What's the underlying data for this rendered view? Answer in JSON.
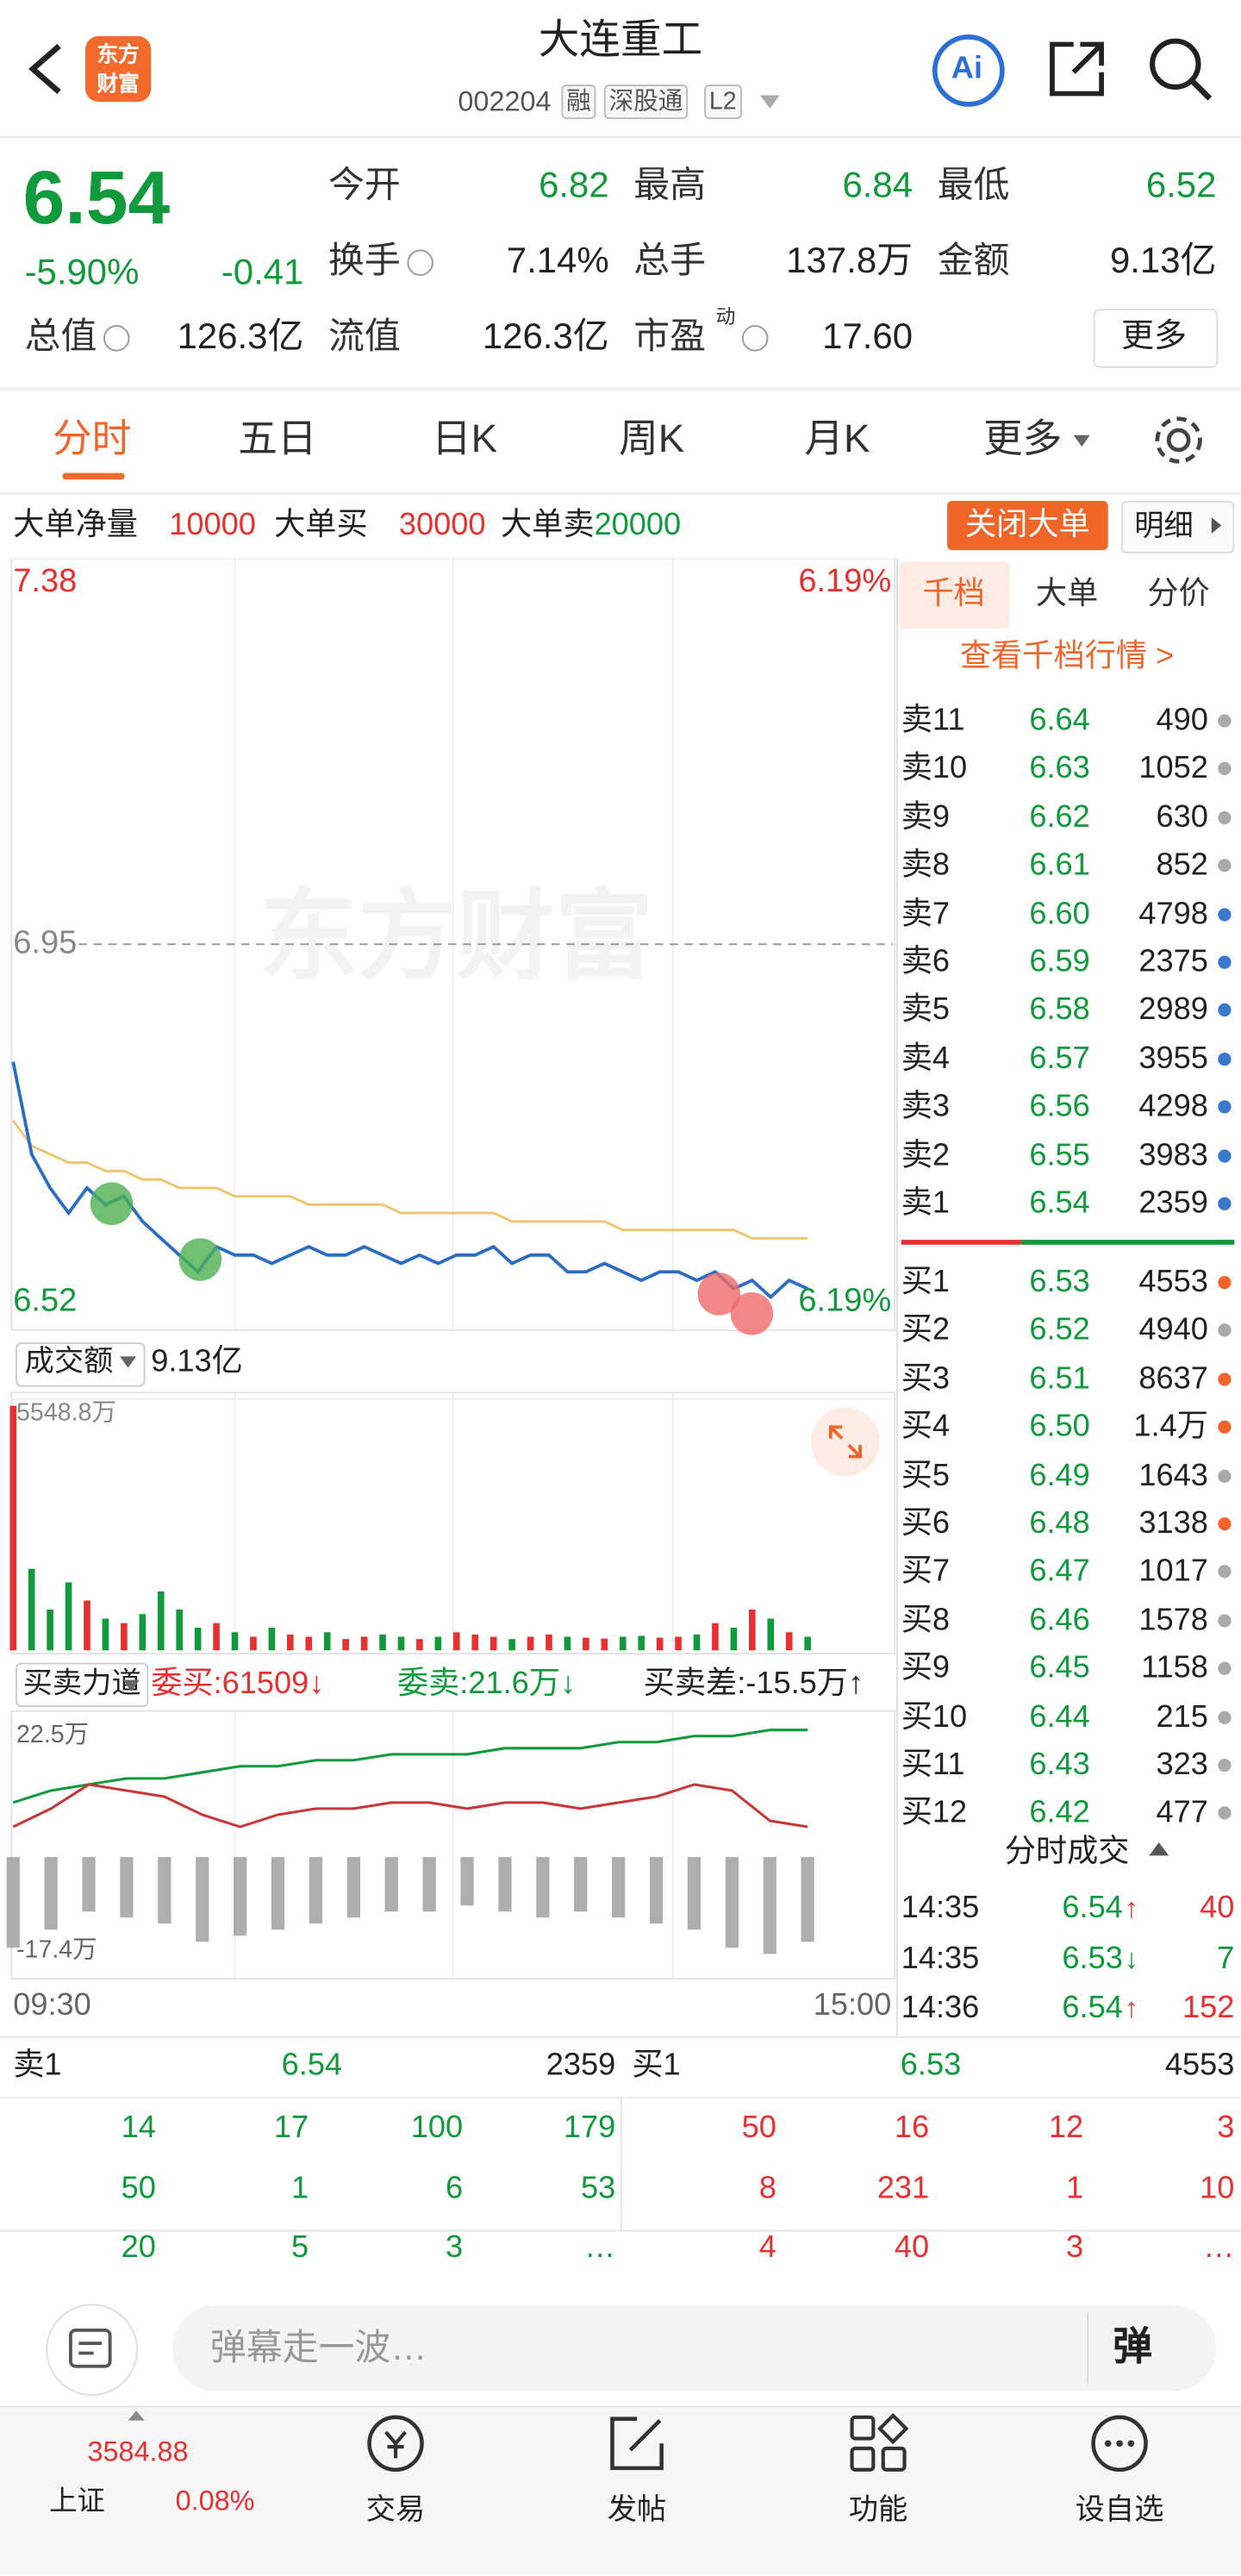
{
  "header": {
    "logo": [
      "东方",
      "财富"
    ],
    "title": "大连重工",
    "code": "002204",
    "tags": [
      "融",
      "深股通",
      "L2"
    ],
    "ai": "Ai"
  },
  "quote": {
    "price": "6.54",
    "change_pct": "-5.90%",
    "change": "-0.41",
    "more": "更多",
    "stats": [
      {
        "label": "今开",
        "value": "6.82",
        "color": "#109a3b"
      },
      {
        "label": "最高",
        "value": "6.84",
        "color": "#109a3b"
      },
      {
        "label": "最低",
        "value": "6.52",
        "color": "#109a3b"
      },
      {
        "label": "换手",
        "value": "7.14%"
      },
      {
        "label": "总手",
        "value": "137.8万"
      },
      {
        "label": "金额",
        "value": "9.13亿"
      },
      {
        "label": "总值",
        "value": "126.3亿"
      },
      {
        "label": "流值",
        "value": "126.3亿"
      },
      {
        "label": "市盈",
        "sup": "动",
        "value": "17.60"
      }
    ]
  },
  "tabs": {
    "items": [
      "分时",
      "五日",
      "日K",
      "周K",
      "月K",
      "更多"
    ]
  },
  "big_order": {
    "items": [
      {
        "label": "大单净量",
        "value": "10000",
        "color": "#e93030"
      },
      {
        "label": "大单买",
        "value": "30000",
        "color": "#e93030"
      },
      {
        "label": "大单卖",
        "value": "20000",
        "color": "#109a3b"
      }
    ],
    "close": "关闭大单",
    "detail": "明细"
  },
  "chart_data": [
    {
      "type": "line",
      "watermark": "东方财富",
      "ylim": [
        6.52,
        7.38
      ],
      "yticks": [
        6.52,
        6.95,
        7.38
      ],
      "pct_labels": [
        "6.19%",
        "6.19%"
      ],
      "series": [
        {
          "color": "#2b6cc4",
          "values": [
            6.81,
            6.7,
            6.66,
            6.63,
            6.66,
            6.64,
            6.65,
            6.62,
            6.6,
            6.58,
            6.56,
            6.59,
            6.58,
            6.58,
            6.57,
            6.58,
            6.59,
            6.58,
            6.58,
            6.59,
            6.58,
            6.57,
            6.58,
            6.57,
            6.58,
            6.58,
            6.59,
            6.57,
            6.58,
            6.58,
            6.56,
            6.56,
            6.57,
            6.56,
            6.55,
            6.56,
            6.56,
            6.55,
            6.56,
            6.54,
            6.55,
            6.53,
            6.55,
            6.54
          ]
        },
        {
          "color": "#f0c46a",
          "values": [
            6.74,
            6.71,
            6.7,
            6.69,
            6.69,
            6.68,
            6.68,
            6.67,
            6.67,
            6.66,
            6.66,
            6.66,
            6.65,
            6.65,
            6.65,
            6.65,
            6.64,
            6.64,
            6.64,
            6.64,
            6.64,
            6.63,
            6.63,
            6.63,
            6.63,
            6.63,
            6.63,
            6.62,
            6.62,
            6.62,
            6.62,
            6.62,
            6.62,
            6.61,
            6.61,
            6.61,
            6.61,
            6.61,
            6.61,
            6.61,
            6.6,
            6.6,
            6.6,
            6.6
          ]
        }
      ]
    },
    {
      "type": "bar",
      "label": "成交额",
      "total": "9.13亿",
      "ylim": [
        0,
        5548.8
      ],
      "yticks": [
        {
          "value": 5548.8,
          "label": "5548.8万"
        }
      ],
      "colors": [
        "#e93030",
        "#109a3b"
      ],
      "values": [
        5400,
        1800,
        900,
        1500,
        1100,
        700,
        600,
        800,
        1300,
        900,
        500,
        600,
        400,
        300,
        500,
        350,
        300,
        400,
        250,
        300,
        350,
        300,
        250,
        300,
        400,
        350,
        300,
        250,
        300,
        350,
        300,
        280,
        260,
        300,
        320,
        280,
        300,
        350,
        600,
        500,
        900,
        700,
        400,
        300
      ]
    },
    {
      "type": "line",
      "label": "买卖力道",
      "buy": "委买:61509↓",
      "sell": "委卖:21.6万↓",
      "diff": "买卖差:-15.5万↑",
      "ylim": [
        -17.4,
        22.5
      ],
      "yticks": [
        {
          "value": 22.5,
          "label": "22.5万"
        },
        {
          "value": -17.4,
          "label": "-17.4万"
        }
      ],
      "xlabels": [
        "09:30",
        "15:00"
      ],
      "series": [
        {
          "color": "#109a3b",
          "values": [
            9,
            11,
            12,
            13,
            13,
            14,
            15,
            15,
            16,
            16,
            17,
            17,
            17,
            18,
            18,
            18,
            19,
            19,
            20,
            20,
            21,
            21
          ]
        },
        {
          "color": "#c8383a",
          "values": [
            5,
            8,
            12,
            11,
            10,
            7,
            5,
            7,
            8,
            8,
            9,
            9,
            8,
            9,
            9,
            8,
            9,
            10,
            12,
            11,
            6,
            5
          ]
        }
      ],
      "bars": [
        -15,
        -12,
        -9,
        -10,
        -11,
        -14,
        -13,
        -12,
        -11,
        -10,
        -9,
        -9,
        -8,
        -9,
        -10,
        -9,
        -10,
        -11,
        -12,
        -15,
        -16,
        -14
      ],
      "bar_color": "#9a9a9a"
    }
  ],
  "order_book": {
    "tabs": [
      "千档",
      "大单",
      "分价"
    ],
    "link": "查看千档行情 >",
    "asks": [
      {
        "label": "卖11",
        "price": "6.64",
        "volume": "490",
        "dot": "#aaa"
      },
      {
        "label": "卖10",
        "price": "6.63",
        "volume": "1052",
        "dot": "#aaa"
      },
      {
        "label": "卖9",
        "price": "6.62",
        "volume": "630",
        "dot": "#aaa"
      },
      {
        "label": "卖8",
        "price": "6.61",
        "volume": "852",
        "dot": "#aaa"
      },
      {
        "label": "卖7",
        "price": "6.60",
        "volume": "4798",
        "dot": "#3a78d0"
      },
      {
        "label": "卖6",
        "price": "6.59",
        "volume": "2375",
        "dot": "#3a78d0"
      },
      {
        "label": "卖5",
        "price": "6.58",
        "volume": "2989",
        "dot": "#3a78d0"
      },
      {
        "label": "卖4",
        "price": "6.57",
        "volume": "3955",
        "dot": "#3a78d0"
      },
      {
        "label": "卖3",
        "price": "6.56",
        "volume": "4298",
        "dot": "#3a78d0"
      },
      {
        "label": "卖2",
        "price": "6.55",
        "volume": "3983",
        "dot": "#3a78d0"
      },
      {
        "label": "卖1",
        "price": "6.54",
        "volume": "2359",
        "dot": "#3a78d0"
      }
    ],
    "bids": [
      {
        "label": "买1",
        "price": "6.53",
        "volume": "4553",
        "dot": "#f0662a"
      },
      {
        "label": "买2",
        "price": "6.52",
        "volume": "4940",
        "dot": "#aaa"
      },
      {
        "label": "买3",
        "price": "6.51",
        "volume": "8637",
        "dot": "#f0662a"
      },
      {
        "label": "买4",
        "price": "6.50",
        "volume": "1.4万",
        "dot": "#f0662a"
      },
      {
        "label": "买5",
        "price": "6.49",
        "volume": "1643",
        "dot": "#aaa"
      },
      {
        "label": "买6",
        "price": "6.48",
        "volume": "3138",
        "dot": "#f0662a"
      },
      {
        "label": "买7",
        "price": "6.47",
        "volume": "1017",
        "dot": "#aaa"
      },
      {
        "label": "买8",
        "price": "6.46",
        "volume": "1578",
        "dot": "#aaa"
      },
      {
        "label": "买9",
        "price": "6.45",
        "volume": "1158",
        "dot": "#aaa"
      },
      {
        "label": "买10",
        "price": "6.44",
        "volume": "215",
        "dot": "#aaa"
      },
      {
        "label": "买11",
        "price": "6.43",
        "volume": "323",
        "dot": "#aaa"
      },
      {
        "label": "买12",
        "price": "6.42",
        "volume": "477",
        "dot": "#aaa"
      }
    ]
  },
  "trades": {
    "title": "分时成交",
    "rows": [
      {
        "time": "14:35",
        "price": "6.54",
        "arrow": "↑",
        "volume": "40",
        "color": "#e93030"
      },
      {
        "time": "14:35",
        "price": "6.53",
        "arrow": "↓",
        "volume": "7",
        "color": "#109a3b"
      },
      {
        "time": "14:36",
        "price": "6.54",
        "arrow": "↑",
        "volume": "152",
        "color": "#e93030"
      }
    ]
  },
  "queue": {
    "ask": {
      "label": "卖1",
      "price": "6.54",
      "volume": "2359",
      "orders": [
        [
          "14",
          "17",
          "100",
          "179"
        ],
        [
          "50",
          "1",
          "6",
          "53"
        ],
        [
          "20",
          "5",
          "3",
          "…"
        ]
      ]
    },
    "bid": {
      "label": "买1",
      "price": "6.53",
      "volume": "4553",
      "orders": [
        [
          "50",
          "16",
          "12",
          "3"
        ],
        [
          "8",
          "231",
          "1",
          "10"
        ],
        [
          "4",
          "40",
          "3",
          "…"
        ]
      ]
    }
  },
  "comment": {
    "placeholder": "弹幕走一波…",
    "button": "弹"
  },
  "nav": {
    "index": {
      "value": "3584.88",
      "name": "上证",
      "change": "0.08%"
    },
    "items": [
      "交易",
      "发帖",
      "功能",
      "设自选"
    ]
  }
}
